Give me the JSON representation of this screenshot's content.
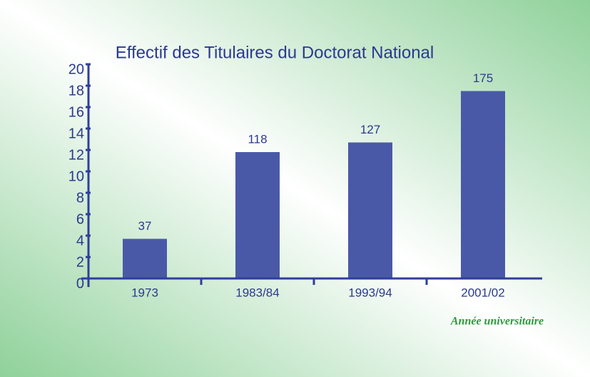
{
  "chart_data": {
    "type": "bar",
    "title": "Effectif des Titulaires du Doctorat National",
    "xlabel": "Année universitaire",
    "categories": [
      "1973",
      "1983/84",
      "1993/94",
      "2001/02"
    ],
    "values": [
      37,
      118,
      127,
      175
    ],
    "color": "#4a59a7",
    "ylim": [
      0,
      200
    ],
    "yticks": [
      0,
      {
        "value": 20,
        "label": "2"
      },
      {
        "value": 40,
        "label": "4"
      },
      {
        "value": 60,
        "label": "6"
      },
      {
        "value": 80,
        "label": "8"
      },
      {
        "value": 100,
        "label": "10"
      },
      {
        "value": 120,
        "label": "12"
      },
      {
        "value": 140,
        "label": "14"
      },
      {
        "value": 160,
        "label": "16"
      },
      {
        "value": 180,
        "label": "18"
      },
      {
        "value": 200,
        "label": "20"
      }
    ],
    "grid": false
  }
}
